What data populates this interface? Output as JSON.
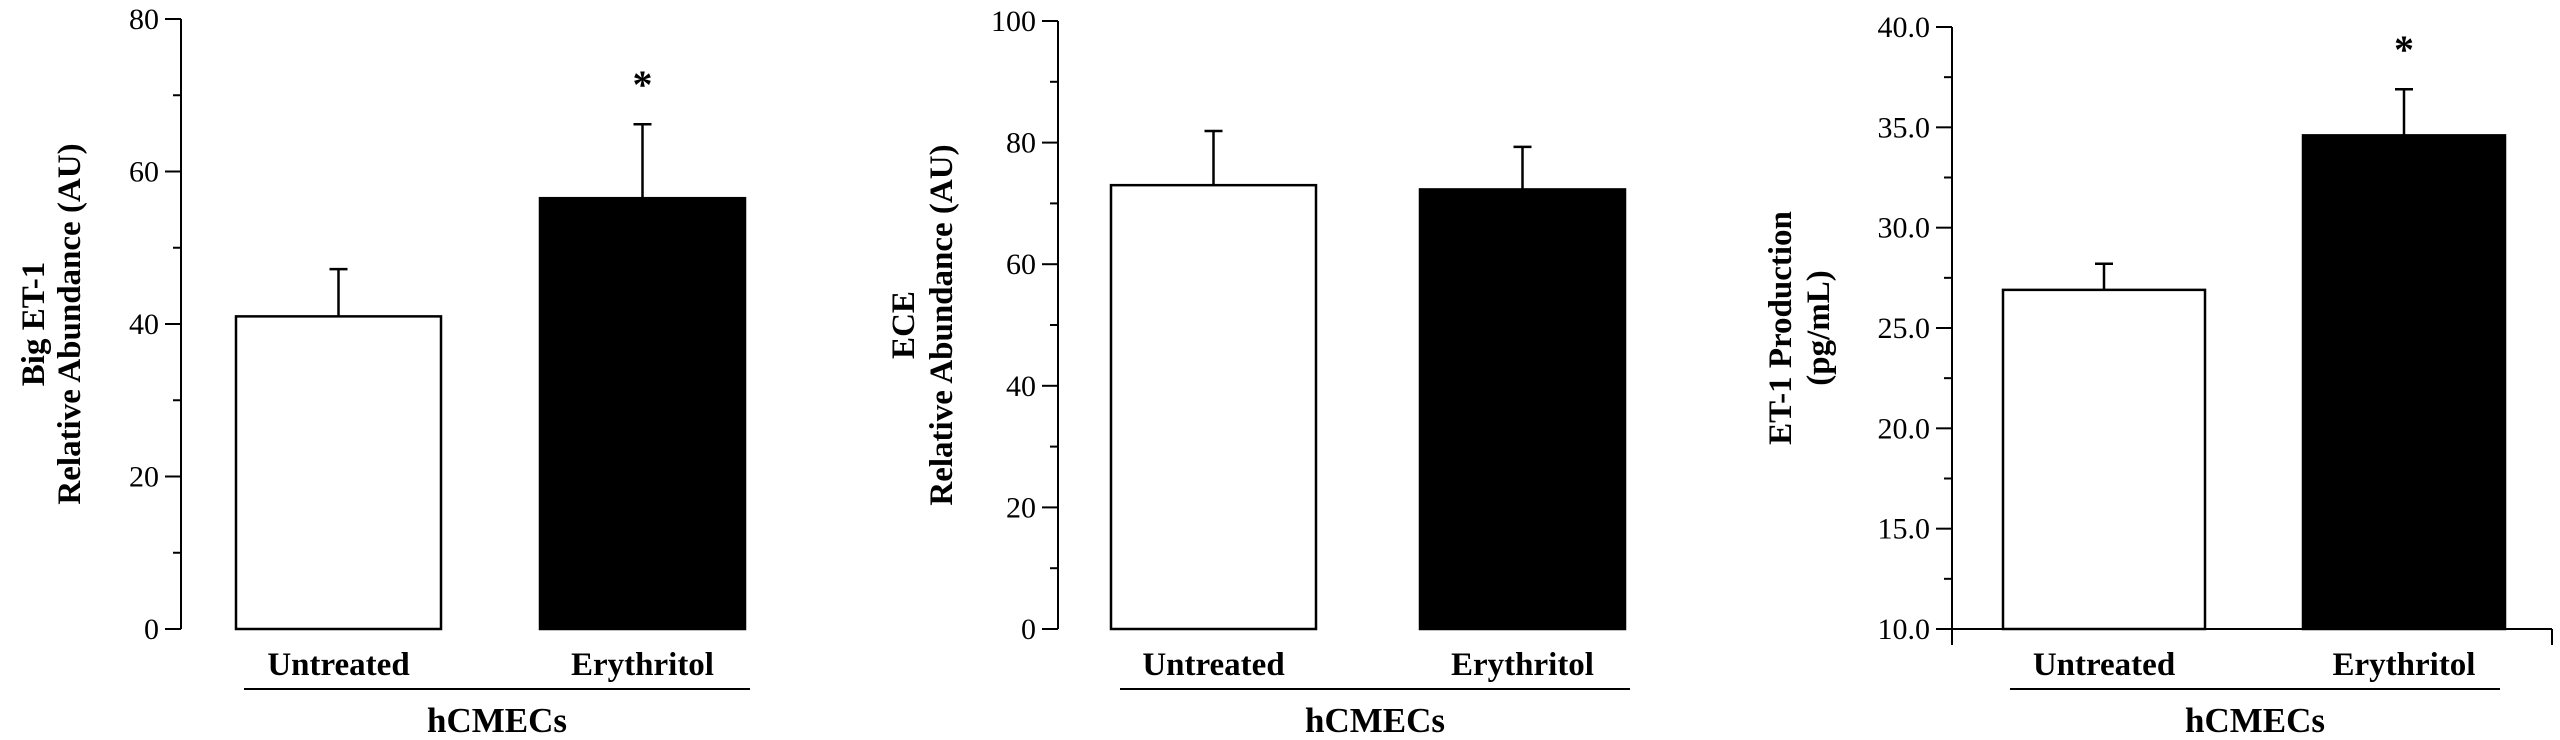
{
  "chart_data": [
    {
      "type": "bar",
      "categories": [
        "Untreated",
        "Erythritol"
      ],
      "values": [
        41,
        56.5
      ],
      "errors": [
        6.2,
        9.7
      ],
      "fills": [
        "#ffffff",
        "#000000"
      ],
      "significance": [
        "",
        "*"
      ],
      "ylabel_lines": [
        "Big ET-1",
        "Relative Abundance (AU)"
      ],
      "ylim": [
        0,
        80
      ],
      "major_ticks": [
        0,
        20,
        40,
        60,
        80
      ],
      "minor_step": 10,
      "group_label": "hCMECs",
      "xlabel": "",
      "grid": false
    },
    {
      "type": "bar",
      "categories": [
        "Untreated",
        "Erythritol"
      ],
      "values": [
        73,
        72.3
      ],
      "errors": [
        8.9,
        7.0
      ],
      "fills": [
        "#ffffff",
        "#000000"
      ],
      "significance": [
        "",
        ""
      ],
      "ylabel_lines": [
        "ECE",
        "Relative Abundance (AU)"
      ],
      "ylim": [
        0,
        100
      ],
      "major_ticks": [
        0,
        20,
        40,
        60,
        80,
        100
      ],
      "minor_step": 10,
      "group_label": "hCMECs",
      "xlabel": "",
      "grid": false
    },
    {
      "type": "bar",
      "categories": [
        "Untreated",
        "Erythritol"
      ],
      "values": [
        26.9,
        34.6
      ],
      "errors": [
        1.3,
        2.3
      ],
      "fills": [
        "#ffffff",
        "#000000"
      ],
      "significance": [
        "",
        "*"
      ],
      "ylabel_lines": [
        "ET-1 Production",
        "(pg/mL)"
      ],
      "ylim": [
        10,
        40
      ],
      "major_ticks": [
        10,
        15,
        20,
        25,
        30,
        35,
        40
      ],
      "minor_step": 2.5,
      "group_label": "hCMECs",
      "xlabel": "",
      "grid": false
    }
  ]
}
